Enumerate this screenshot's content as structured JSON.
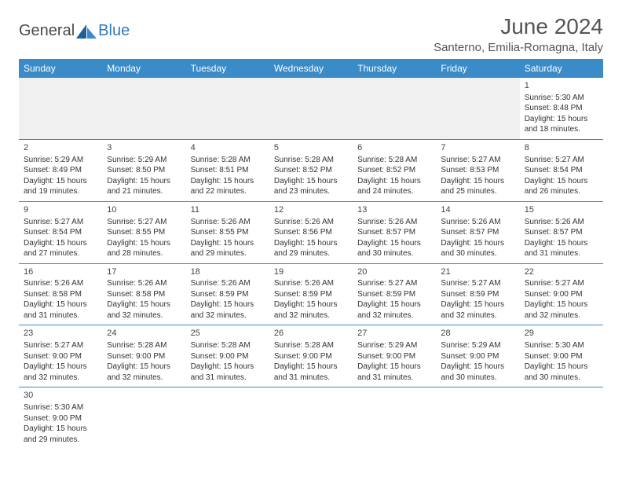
{
  "brand": {
    "part1": "General",
    "part2": "Blue"
  },
  "title": "June 2024",
  "location": "Santerno, Emilia-Romagna, Italy",
  "colors": {
    "header_bg": "#3b8bc9",
    "header_text": "#ffffff",
    "border": "#3b8bc9",
    "text": "#333333",
    "muted_bg": "#f0f0f0"
  },
  "weekdays": [
    "Sunday",
    "Monday",
    "Tuesday",
    "Wednesday",
    "Thursday",
    "Friday",
    "Saturday"
  ],
  "weeks": [
    [
      null,
      null,
      null,
      null,
      null,
      null,
      {
        "n": "1",
        "sr": "Sunrise: 5:30 AM",
        "ss": "Sunset: 8:48 PM",
        "dl1": "Daylight: 15 hours",
        "dl2": "and 18 minutes."
      }
    ],
    [
      {
        "n": "2",
        "sr": "Sunrise: 5:29 AM",
        "ss": "Sunset: 8:49 PM",
        "dl1": "Daylight: 15 hours",
        "dl2": "and 19 minutes."
      },
      {
        "n": "3",
        "sr": "Sunrise: 5:29 AM",
        "ss": "Sunset: 8:50 PM",
        "dl1": "Daylight: 15 hours",
        "dl2": "and 21 minutes."
      },
      {
        "n": "4",
        "sr": "Sunrise: 5:28 AM",
        "ss": "Sunset: 8:51 PM",
        "dl1": "Daylight: 15 hours",
        "dl2": "and 22 minutes."
      },
      {
        "n": "5",
        "sr": "Sunrise: 5:28 AM",
        "ss": "Sunset: 8:52 PM",
        "dl1": "Daylight: 15 hours",
        "dl2": "and 23 minutes."
      },
      {
        "n": "6",
        "sr": "Sunrise: 5:28 AM",
        "ss": "Sunset: 8:52 PM",
        "dl1": "Daylight: 15 hours",
        "dl2": "and 24 minutes."
      },
      {
        "n": "7",
        "sr": "Sunrise: 5:27 AM",
        "ss": "Sunset: 8:53 PM",
        "dl1": "Daylight: 15 hours",
        "dl2": "and 25 minutes."
      },
      {
        "n": "8",
        "sr": "Sunrise: 5:27 AM",
        "ss": "Sunset: 8:54 PM",
        "dl1": "Daylight: 15 hours",
        "dl2": "and 26 minutes."
      }
    ],
    [
      {
        "n": "9",
        "sr": "Sunrise: 5:27 AM",
        "ss": "Sunset: 8:54 PM",
        "dl1": "Daylight: 15 hours",
        "dl2": "and 27 minutes."
      },
      {
        "n": "10",
        "sr": "Sunrise: 5:27 AM",
        "ss": "Sunset: 8:55 PM",
        "dl1": "Daylight: 15 hours",
        "dl2": "and 28 minutes."
      },
      {
        "n": "11",
        "sr": "Sunrise: 5:26 AM",
        "ss": "Sunset: 8:55 PM",
        "dl1": "Daylight: 15 hours",
        "dl2": "and 29 minutes."
      },
      {
        "n": "12",
        "sr": "Sunrise: 5:26 AM",
        "ss": "Sunset: 8:56 PM",
        "dl1": "Daylight: 15 hours",
        "dl2": "and 29 minutes."
      },
      {
        "n": "13",
        "sr": "Sunrise: 5:26 AM",
        "ss": "Sunset: 8:57 PM",
        "dl1": "Daylight: 15 hours",
        "dl2": "and 30 minutes."
      },
      {
        "n": "14",
        "sr": "Sunrise: 5:26 AM",
        "ss": "Sunset: 8:57 PM",
        "dl1": "Daylight: 15 hours",
        "dl2": "and 30 minutes."
      },
      {
        "n": "15",
        "sr": "Sunrise: 5:26 AM",
        "ss": "Sunset: 8:57 PM",
        "dl1": "Daylight: 15 hours",
        "dl2": "and 31 minutes."
      }
    ],
    [
      {
        "n": "16",
        "sr": "Sunrise: 5:26 AM",
        "ss": "Sunset: 8:58 PM",
        "dl1": "Daylight: 15 hours",
        "dl2": "and 31 minutes."
      },
      {
        "n": "17",
        "sr": "Sunrise: 5:26 AM",
        "ss": "Sunset: 8:58 PM",
        "dl1": "Daylight: 15 hours",
        "dl2": "and 32 minutes."
      },
      {
        "n": "18",
        "sr": "Sunrise: 5:26 AM",
        "ss": "Sunset: 8:59 PM",
        "dl1": "Daylight: 15 hours",
        "dl2": "and 32 minutes."
      },
      {
        "n": "19",
        "sr": "Sunrise: 5:26 AM",
        "ss": "Sunset: 8:59 PM",
        "dl1": "Daylight: 15 hours",
        "dl2": "and 32 minutes."
      },
      {
        "n": "20",
        "sr": "Sunrise: 5:27 AM",
        "ss": "Sunset: 8:59 PM",
        "dl1": "Daylight: 15 hours",
        "dl2": "and 32 minutes."
      },
      {
        "n": "21",
        "sr": "Sunrise: 5:27 AM",
        "ss": "Sunset: 8:59 PM",
        "dl1": "Daylight: 15 hours",
        "dl2": "and 32 minutes."
      },
      {
        "n": "22",
        "sr": "Sunrise: 5:27 AM",
        "ss": "Sunset: 9:00 PM",
        "dl1": "Daylight: 15 hours",
        "dl2": "and 32 minutes."
      }
    ],
    [
      {
        "n": "23",
        "sr": "Sunrise: 5:27 AM",
        "ss": "Sunset: 9:00 PM",
        "dl1": "Daylight: 15 hours",
        "dl2": "and 32 minutes."
      },
      {
        "n": "24",
        "sr": "Sunrise: 5:28 AM",
        "ss": "Sunset: 9:00 PM",
        "dl1": "Daylight: 15 hours",
        "dl2": "and 32 minutes."
      },
      {
        "n": "25",
        "sr": "Sunrise: 5:28 AM",
        "ss": "Sunset: 9:00 PM",
        "dl1": "Daylight: 15 hours",
        "dl2": "and 31 minutes."
      },
      {
        "n": "26",
        "sr": "Sunrise: 5:28 AM",
        "ss": "Sunset: 9:00 PM",
        "dl1": "Daylight: 15 hours",
        "dl2": "and 31 minutes."
      },
      {
        "n": "27",
        "sr": "Sunrise: 5:29 AM",
        "ss": "Sunset: 9:00 PM",
        "dl1": "Daylight: 15 hours",
        "dl2": "and 31 minutes."
      },
      {
        "n": "28",
        "sr": "Sunrise: 5:29 AM",
        "ss": "Sunset: 9:00 PM",
        "dl1": "Daylight: 15 hours",
        "dl2": "and 30 minutes."
      },
      {
        "n": "29",
        "sr": "Sunrise: 5:30 AM",
        "ss": "Sunset: 9:00 PM",
        "dl1": "Daylight: 15 hours",
        "dl2": "and 30 minutes."
      }
    ],
    [
      {
        "n": "30",
        "sr": "Sunrise: 5:30 AM",
        "ss": "Sunset: 9:00 PM",
        "dl1": "Daylight: 15 hours",
        "dl2": "and 29 minutes."
      },
      null,
      null,
      null,
      null,
      null,
      null
    ]
  ]
}
